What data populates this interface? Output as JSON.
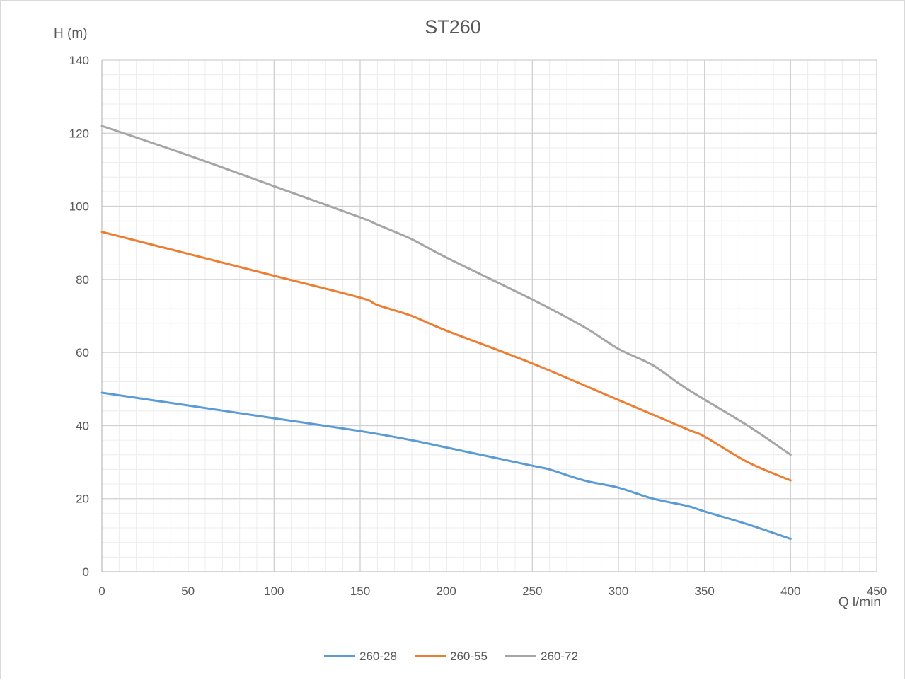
{
  "chart_data": {
    "type": "line",
    "title": "ST260",
    "xlabel": "Q l/min",
    "ylabel": "H (m)",
    "xlim": [
      0,
      450
    ],
    "ylim": [
      0,
      140
    ],
    "x_ticks": [
      0,
      50,
      100,
      150,
      200,
      250,
      300,
      350,
      400,
      450
    ],
    "y_ticks": [
      0,
      20,
      40,
      60,
      80,
      100,
      120,
      140
    ],
    "grid": true,
    "minor_grid": true,
    "legend_position": "bottom",
    "series": [
      {
        "name": "260-28",
        "color": "#5b9bd5",
        "x": [
          0,
          50,
          100,
          150,
          180,
          200,
          250,
          260,
          280,
          300,
          320,
          340,
          350,
          375,
          400
        ],
        "y": [
          49,
          45.5,
          42,
          38.5,
          36,
          34,
          29,
          28,
          25,
          23,
          20,
          18,
          16.5,
          13,
          9
        ]
      },
      {
        "name": "260-55",
        "color": "#ed7d31",
        "x": [
          0,
          50,
          100,
          150,
          160,
          180,
          200,
          250,
          300,
          340,
          350,
          375,
          400
        ],
        "y": [
          93,
          87,
          81,
          75,
          73,
          70,
          66,
          57,
          47,
          39,
          37,
          30,
          25
        ]
      },
      {
        "name": "260-72",
        "color": "#a5a5a5",
        "x": [
          0,
          50,
          100,
          150,
          160,
          180,
          200,
          250,
          280,
          300,
          320,
          340,
          375,
          400
        ],
        "y": [
          122,
          114,
          105.5,
          97,
          95,
          91,
          86,
          74.5,
          67,
          61,
          56.5,
          50,
          40,
          32
        ]
      }
    ]
  }
}
